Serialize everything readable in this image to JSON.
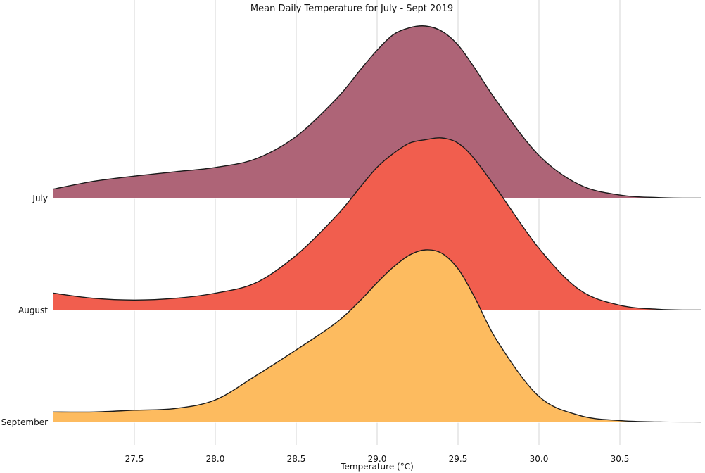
{
  "chart_data": {
    "type": "area",
    "title": "Mean Daily Temperature for July - Sept 2019",
    "xlabel": "Temperature (°C)",
    "ylabel": "",
    "xlim": [
      27.0,
      31.0
    ],
    "xticks": [
      "27.5",
      "28.0",
      "28.5",
      "29.0",
      "29.5",
      "30.0",
      "30.5"
    ],
    "xtick_values": [
      27.5,
      28.0,
      28.5,
      29.0,
      29.5,
      30.0,
      30.5
    ],
    "grid": "vertical",
    "legend": "none",
    "layout": "ridgeline",
    "series": [
      {
        "name": "July",
        "color": "#AE6477",
        "x": [
          27.0,
          27.25,
          27.5,
          27.75,
          28.0,
          28.25,
          28.5,
          28.75,
          28.9,
          29.0,
          29.1,
          29.2,
          29.3,
          29.4,
          29.5,
          29.6,
          29.75,
          30.0,
          30.25,
          30.5,
          30.75,
          31.0
        ],
        "density": [
          0.055,
          0.1,
          0.13,
          0.155,
          0.18,
          0.23,
          0.36,
          0.58,
          0.75,
          0.86,
          0.95,
          0.99,
          1.0,
          0.97,
          0.89,
          0.76,
          0.55,
          0.25,
          0.08,
          0.02,
          0.005,
          0.002
        ]
      },
      {
        "name": "August",
        "color": "#F15E4E",
        "x": [
          27.0,
          27.25,
          27.5,
          27.75,
          28.0,
          28.25,
          28.5,
          28.75,
          28.9,
          29.0,
          29.1,
          29.2,
          29.3,
          29.4,
          29.5,
          29.6,
          29.75,
          30.0,
          30.25,
          30.5,
          30.75,
          31.0
        ],
        "density": [
          0.1,
          0.07,
          0.06,
          0.07,
          0.1,
          0.16,
          0.32,
          0.55,
          0.72,
          0.83,
          0.91,
          0.97,
          0.99,
          1.0,
          0.97,
          0.88,
          0.69,
          0.36,
          0.12,
          0.03,
          0.006,
          0.002
        ]
      },
      {
        "name": "September",
        "color": "#FDBB5F",
        "x": [
          27.0,
          27.25,
          27.5,
          27.75,
          28.0,
          28.25,
          28.5,
          28.75,
          28.9,
          29.0,
          29.1,
          29.2,
          29.3,
          29.4,
          29.5,
          29.6,
          29.75,
          30.0,
          30.25,
          30.5,
          30.75,
          31.0
        ],
        "density": [
          0.06,
          0.06,
          0.07,
          0.08,
          0.13,
          0.27,
          0.42,
          0.58,
          0.71,
          0.81,
          0.9,
          0.97,
          1.0,
          0.98,
          0.89,
          0.73,
          0.46,
          0.15,
          0.04,
          0.01,
          0.002,
          0.0
        ]
      }
    ]
  }
}
